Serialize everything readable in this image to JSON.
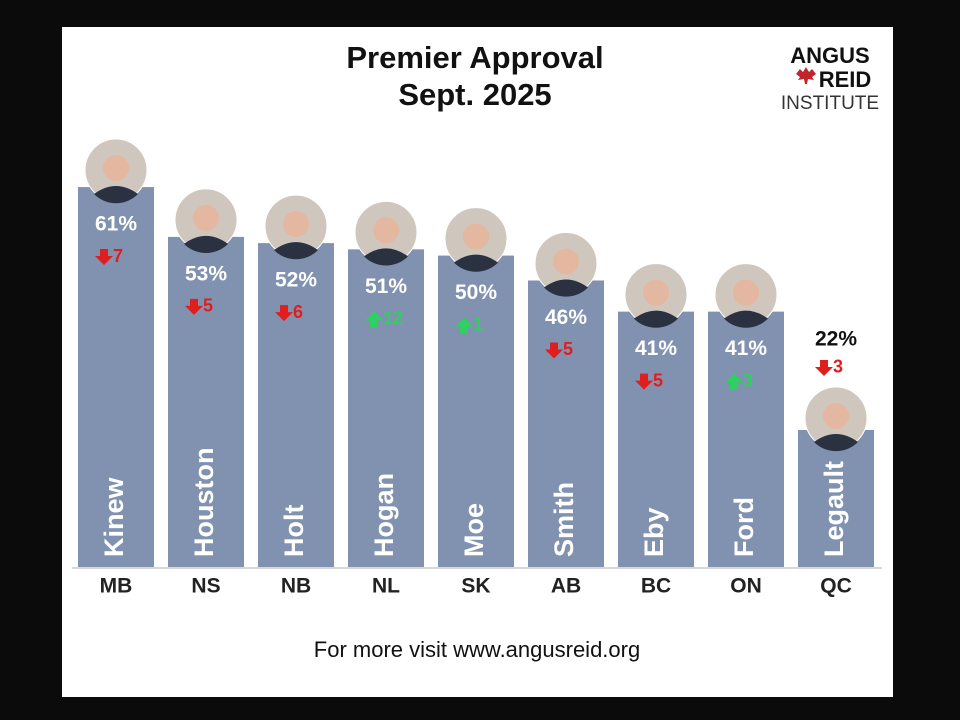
{
  "chart_data": {
    "type": "bar",
    "title": "Premier Approval",
    "subtitle": "Sept. 2025",
    "logo": [
      "ANGUS",
      "REID",
      "INSTITUTE"
    ],
    "footer": "For more visit www.angusreid.org",
    "categories": [
      "MB",
      "NS",
      "NB",
      "NL",
      "SK",
      "AB",
      "BC",
      "ON",
      "QC"
    ],
    "names": [
      "Kinew",
      "Houston",
      "Holt",
      "Hogan",
      "Moe",
      "Smith",
      "Eby",
      "Ford",
      "Legault"
    ],
    "values": [
      61,
      53,
      52,
      51,
      50,
      46,
      41,
      41,
      22
    ],
    "value_labels": [
      "61%",
      "53%",
      "52%",
      "51%",
      "50%",
      "46%",
      "41%",
      "41%",
      "22%"
    ],
    "changes": [
      -7,
      -5,
      -6,
      12,
      1,
      -5,
      -5,
      3,
      -3
    ],
    "change_labels": [
      "7",
      "5",
      "6",
      "12",
      "1",
      "5",
      "5",
      "3",
      "3"
    ],
    "color": "#8092b0",
    "up_color": "#2fd060",
    "down_color": "#e01e1e",
    "ylim": [
      0,
      70
    ]
  }
}
